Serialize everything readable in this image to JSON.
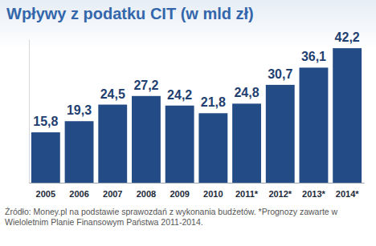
{
  "chart_data": {
    "type": "bar",
    "title": "Wpływy z podatku CIT (w mld zł)",
    "categories": [
      "2005",
      "2006",
      "2007",
      "2008",
      "2009",
      "2010",
      "2011*",
      "2012*",
      "2013*",
      "2014*"
    ],
    "values": [
      15.8,
      19.3,
      24.5,
      27.2,
      24.2,
      21.8,
      24.8,
      30.7,
      36.1,
      42.2
    ],
    "value_labels": [
      "15,8",
      "19,3",
      "24,5",
      "27,2",
      "24,2",
      "21,8",
      "24,8",
      "30,7",
      "36,1",
      "42,2"
    ],
    "color": "#234c86",
    "ylim": [
      0,
      45
    ],
    "data_labels": true,
    "tick_labels": "x",
    "grid": false,
    "annotations": [
      "Źródło: Money.pl na podstawie sprawozdań z wykonania budżetów. *Prognozy zawarte w Wieloletnim Planie Finansowym Państwa 2011-2014."
    ]
  }
}
